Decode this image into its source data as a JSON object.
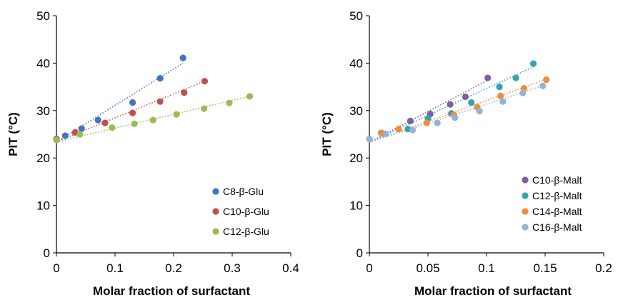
{
  "chart_data": [
    {
      "type": "scatter",
      "title": "",
      "xlabel": "Molar fraction of surfactant",
      "ylabel": "PIT (°C)",
      "xlim": [
        0,
        0.4
      ],
      "ylim": [
        0,
        50
      ],
      "xticks": [
        "0",
        "0.1",
        "0.2",
        "0.3",
        "0.4"
      ],
      "yticks": [
        "0",
        "10",
        "20",
        "30",
        "40",
        "50"
      ],
      "grid": false,
      "legend_position": "bottom-right",
      "trendlines": "dotted linear fit per series",
      "series": [
        {
          "name": "C8-β-Glu",
          "color": "#4472c4",
          "x": [
            0,
            0.015,
            0.043,
            0.071,
            0.13,
            0.177,
            0.216
          ],
          "y": [
            24.0,
            24.7,
            26.2,
            28.0,
            31.7,
            36.8,
            41.1
          ],
          "fit": [
            [
              0,
              23.4
            ],
            [
              0.216,
              40.0
            ]
          ]
        },
        {
          "name": "C10-β-Glu",
          "color": "#c0504d",
          "x": [
            0,
            0.032,
            0.083,
            0.13,
            0.177,
            0.218,
            0.253
          ],
          "y": [
            24.0,
            25.4,
            27.4,
            29.5,
            31.9,
            33.8,
            36.2
          ],
          "fit": [
            [
              0,
              23.4
            ],
            [
              0.253,
              36.2
            ]
          ]
        },
        {
          "name": "C12-β-Glu",
          "color": "#9bbb59",
          "x": [
            0,
            0.04,
            0.095,
            0.133,
            0.165,
            0.205,
            0.252,
            0.295,
            0.33
          ],
          "y": [
            23.8,
            25.0,
            26.4,
            27.2,
            28.0,
            29.2,
            30.4,
            31.6,
            33.0
          ],
          "fit": [
            [
              0,
              23.4
            ],
            [
              0.33,
              33.0
            ]
          ]
        }
      ]
    },
    {
      "type": "scatter",
      "title": "",
      "xlabel": "Molar fraction of surfactant",
      "ylabel": "PIT (°C)",
      "xlim": [
        0,
        0.2
      ],
      "ylim": [
        0,
        50
      ],
      "xticks": [
        "0",
        "0.05",
        "0.1",
        "0.15",
        "0.2"
      ],
      "yticks": [
        "0",
        "10",
        "20",
        "30",
        "40",
        "50"
      ],
      "grid": false,
      "legend_position": "bottom-right",
      "trendlines": "dotted linear fit per series",
      "series": [
        {
          "name": "C10-β-Malt",
          "color": "#7f5fa3",
          "x": [
            0,
            0.011,
            0.035,
            0.052,
            0.069,
            0.082,
            0.101
          ],
          "y": [
            24.0,
            25.2,
            27.8,
            29.3,
            31.3,
            32.9,
            36.9
          ],
          "fit": [
            [
              0,
              23.3
            ],
            [
              0.101,
              36.4
            ]
          ]
        },
        {
          "name": "C12-β-Malt",
          "color": "#31a4b4",
          "x": [
            0,
            0.014,
            0.033,
            0.05,
            0.07,
            0.087,
            0.111,
            0.125,
            0.14
          ],
          "y": [
            24.0,
            25.1,
            26.1,
            28.3,
            29.4,
            31.7,
            35.0,
            36.9,
            39.9
          ],
          "fit": [
            [
              0,
              23.3
            ],
            [
              0.14,
              39.2
            ]
          ]
        },
        {
          "name": "C14-β-Malt",
          "color": "#f08c3c",
          "x": [
            0,
            0.01,
            0.025,
            0.049,
            0.072,
            0.092,
            0.112,
            0.132,
            0.151
          ],
          "y": [
            24.0,
            25.3,
            26.1,
            27.4,
            29.1,
            30.7,
            33.1,
            34.7,
            36.5
          ],
          "fit": [
            [
              0,
              23.3
            ],
            [
              0.151,
              36.6
            ]
          ]
        },
        {
          "name": "C16-β-Malt",
          "color": "#95b3d7",
          "x": [
            0,
            0.014,
            0.037,
            0.058,
            0.073,
            0.094,
            0.114,
            0.131,
            0.148
          ],
          "y": [
            24.0,
            25.1,
            25.9,
            27.4,
            28.5,
            29.9,
            31.9,
            33.7,
            35.2
          ],
          "fit": [
            [
              0,
              23.3
            ],
            [
              0.148,
              35.2
            ]
          ]
        }
      ]
    }
  ]
}
